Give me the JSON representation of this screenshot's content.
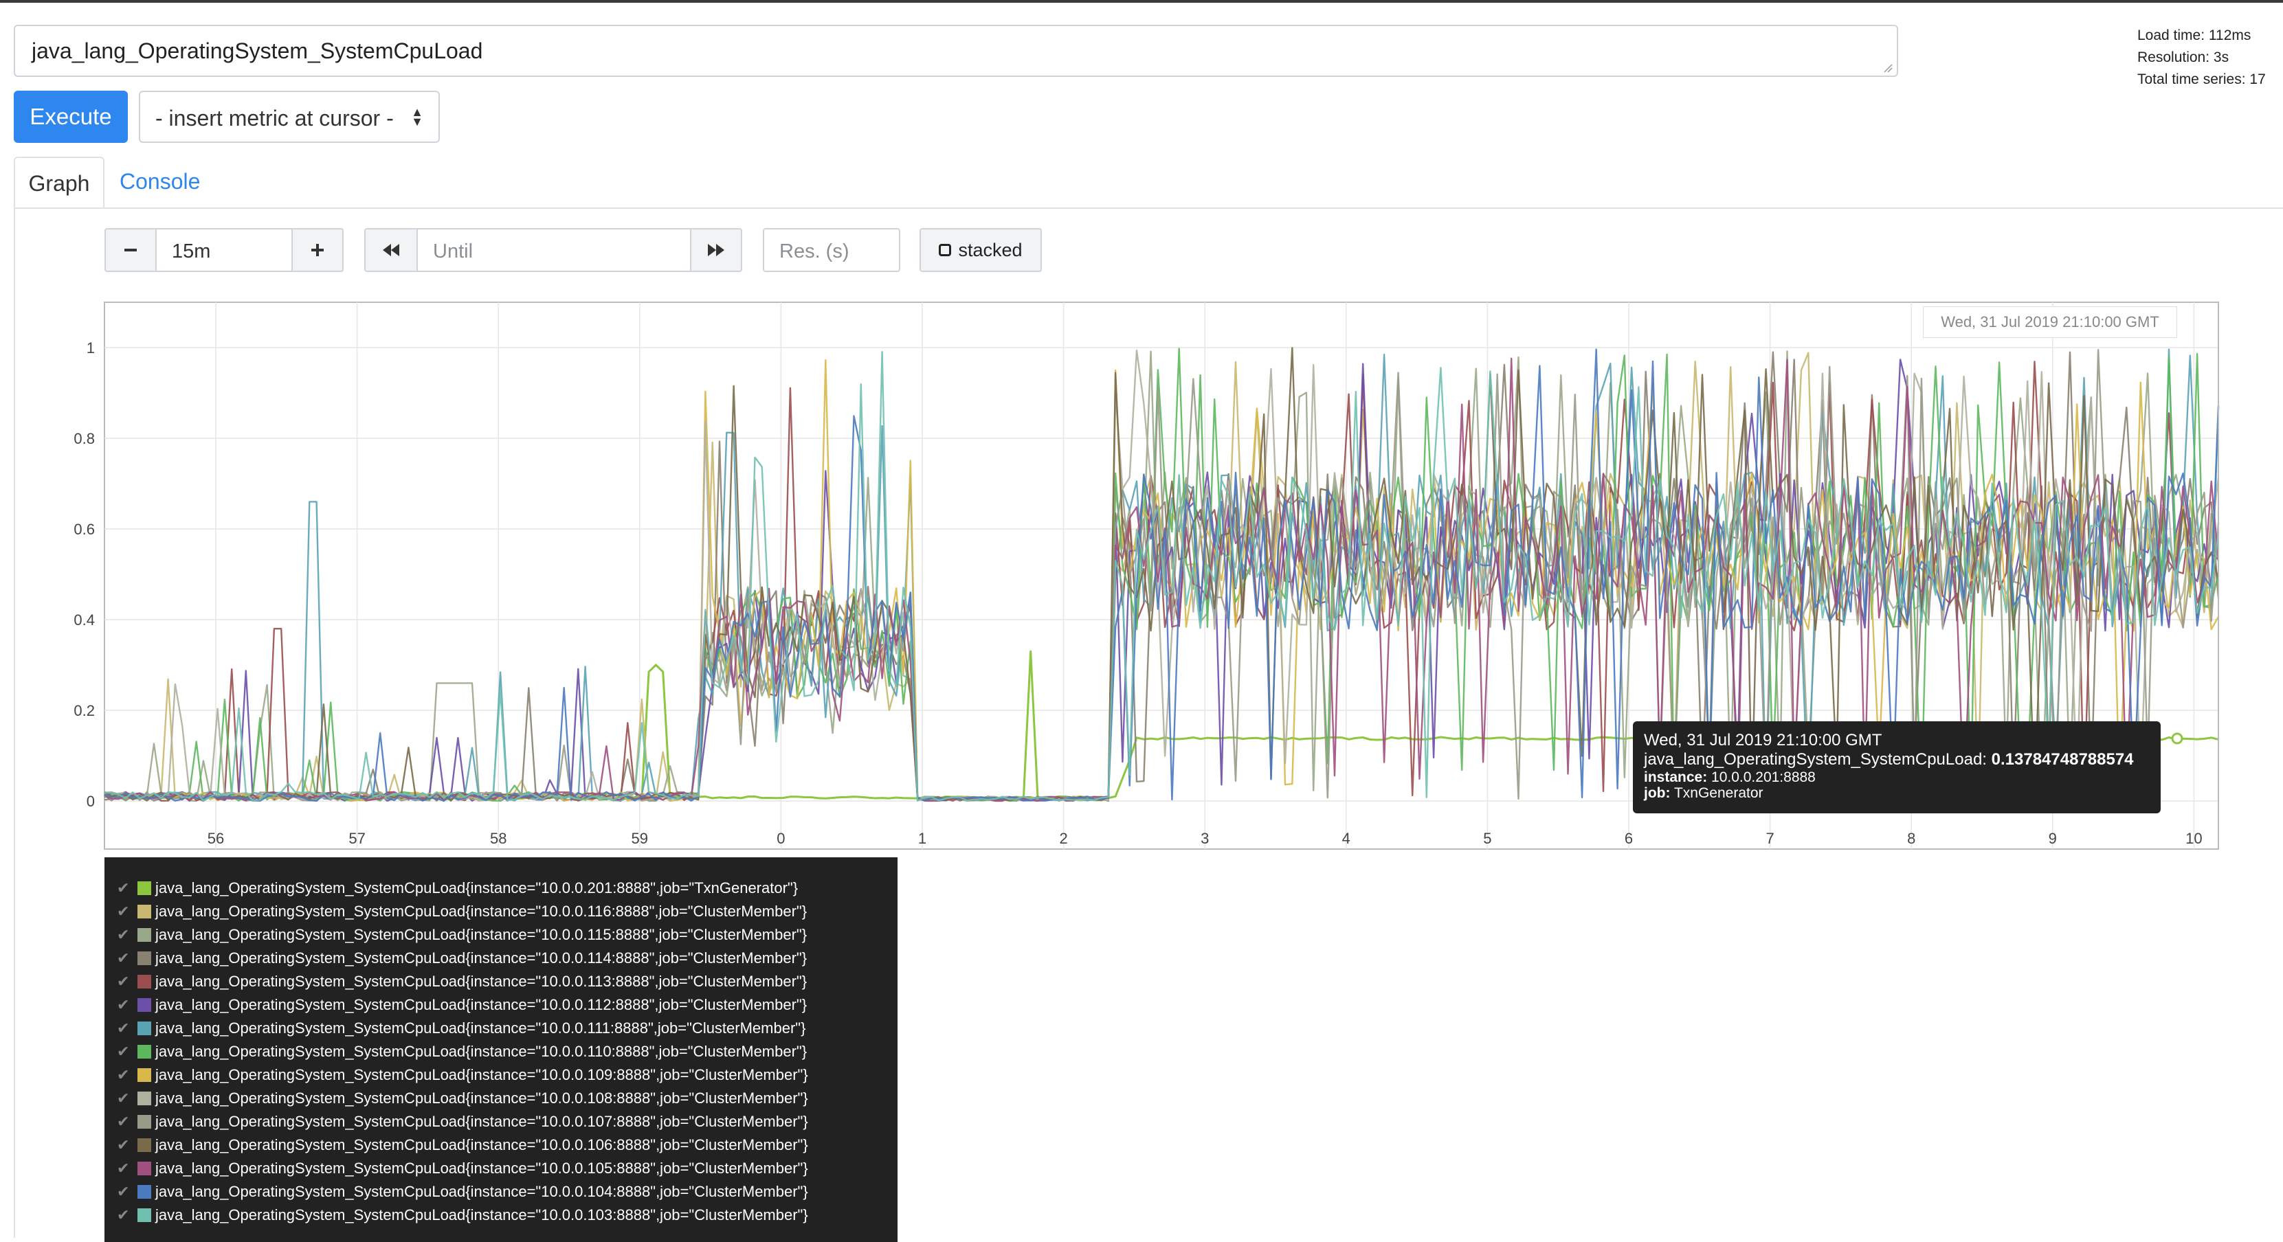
{
  "query": {
    "expression": "java_lang_OperatingSystem_SystemCpuLoad"
  },
  "stats": {
    "load_time": "Load time: 112ms",
    "resolution": "Resolution: 3s",
    "total_series": "Total time series: 17"
  },
  "toolbar": {
    "execute_label": "Execute",
    "insert_metric_label": "- insert metric at cursor -"
  },
  "tabs": {
    "graph": "Graph",
    "console": "Console"
  },
  "controls": {
    "range_value": "15m",
    "until_placeholder": "Until",
    "res_placeholder": "Res. (s)",
    "stacked_label": "stacked",
    "minus_icon": "minus-icon",
    "plus_icon": "plus-icon",
    "back_icon": "backward-icon",
    "forward_icon": "forward-icon"
  },
  "chart_data": {
    "type": "line",
    "y_ticks": [
      "0",
      "0.2",
      "0.4",
      "0.6",
      "0.8",
      "1"
    ],
    "ylim": [
      0,
      1
    ],
    "x_ticks": [
      "56",
      "57",
      "58",
      "59",
      "0",
      "1",
      "2",
      "3",
      "4",
      "5",
      "6",
      "7",
      "8",
      "9",
      "10"
    ],
    "hover_time": "Wed, 31 Jul 2019 21:10:00 GMT",
    "grid": true,
    "series": [
      {
        "instance": "10.0.0.201:8888",
        "job": "TxnGenerator",
        "color": "#8dc63f"
      },
      {
        "instance": "10.0.0.116:8888",
        "job": "ClusterMember",
        "color": "#c9b870"
      },
      {
        "instance": "10.0.0.115:8888",
        "job": "ClusterMember",
        "color": "#9aa88a"
      },
      {
        "instance": "10.0.0.114:8888",
        "job": "ClusterMember",
        "color": "#8a8270"
      },
      {
        "instance": "10.0.0.113:8888",
        "job": "ClusterMember",
        "color": "#9b4e4e"
      },
      {
        "instance": "10.0.0.112:8888",
        "job": "ClusterMember",
        "color": "#6b4fa8"
      },
      {
        "instance": "10.0.0.111:8888",
        "job": "ClusterMember",
        "color": "#5aa3b5"
      },
      {
        "instance": "10.0.0.110:8888",
        "job": "ClusterMember",
        "color": "#5cb85c"
      },
      {
        "instance": "10.0.0.109:8888",
        "job": "ClusterMember",
        "color": "#d8b84a"
      },
      {
        "instance": "10.0.0.108:8888",
        "job": "ClusterMember",
        "color": "#b0b0a0"
      },
      {
        "instance": "10.0.0.107:8888",
        "job": "ClusterMember",
        "color": "#9a9a8a"
      },
      {
        "instance": "10.0.0.106:8888",
        "job": "ClusterMember",
        "color": "#7a6a4a"
      },
      {
        "instance": "10.0.0.105:8888",
        "job": "ClusterMember",
        "color": "#a05080"
      },
      {
        "instance": "10.0.0.104:8888",
        "job": "ClusterMember",
        "color": "#4a7ac0"
      },
      {
        "instance": "10.0.0.103:8888",
        "job": "ClusterMember",
        "color": "#70c0b0"
      }
    ]
  },
  "legend": {
    "metric": "java_lang_OperatingSystem_SystemCpuLoad",
    "entries": [
      "java_lang_OperatingSystem_SystemCpuLoad{instance=\"10.0.0.201:8888\",job=\"TxnGenerator\"}",
      "java_lang_OperatingSystem_SystemCpuLoad{instance=\"10.0.0.116:8888\",job=\"ClusterMember\"}",
      "java_lang_OperatingSystem_SystemCpuLoad{instance=\"10.0.0.115:8888\",job=\"ClusterMember\"}",
      "java_lang_OperatingSystem_SystemCpuLoad{instance=\"10.0.0.114:8888\",job=\"ClusterMember\"}",
      "java_lang_OperatingSystem_SystemCpuLoad{instance=\"10.0.0.113:8888\",job=\"ClusterMember\"}",
      "java_lang_OperatingSystem_SystemCpuLoad{instance=\"10.0.0.112:8888\",job=\"ClusterMember\"}",
      "java_lang_OperatingSystem_SystemCpuLoad{instance=\"10.0.0.111:8888\",job=\"ClusterMember\"}",
      "java_lang_OperatingSystem_SystemCpuLoad{instance=\"10.0.0.110:8888\",job=\"ClusterMember\"}",
      "java_lang_OperatingSystem_SystemCpuLoad{instance=\"10.0.0.109:8888\",job=\"ClusterMember\"}",
      "java_lang_OperatingSystem_SystemCpuLoad{instance=\"10.0.0.108:8888\",job=\"ClusterMember\"}",
      "java_lang_OperatingSystem_SystemCpuLoad{instance=\"10.0.0.107:8888\",job=\"ClusterMember\"}",
      "java_lang_OperatingSystem_SystemCpuLoad{instance=\"10.0.0.106:8888\",job=\"ClusterMember\"}",
      "java_lang_OperatingSystem_SystemCpuLoad{instance=\"10.0.0.105:8888\",job=\"ClusterMember\"}",
      "java_lang_OperatingSystem_SystemCpuLoad{instance=\"10.0.0.104:8888\",job=\"ClusterMember\"}",
      "java_lang_OperatingSystem_SystemCpuLoad{instance=\"10.0.0.103:8888\",job=\"ClusterMember\"}"
    ]
  },
  "tooltip": {
    "time": "Wed, 31 Jul 2019 21:10:00 GMT",
    "metric": "java_lang_OperatingSystem_SystemCpuLoad:",
    "value": "0.13784748788574",
    "value_number": 0.13784748788574,
    "instance_key": "instance:",
    "instance_value": "10.0.0.201:8888",
    "job_key": "job:",
    "job_value": "TxnGenerator"
  }
}
